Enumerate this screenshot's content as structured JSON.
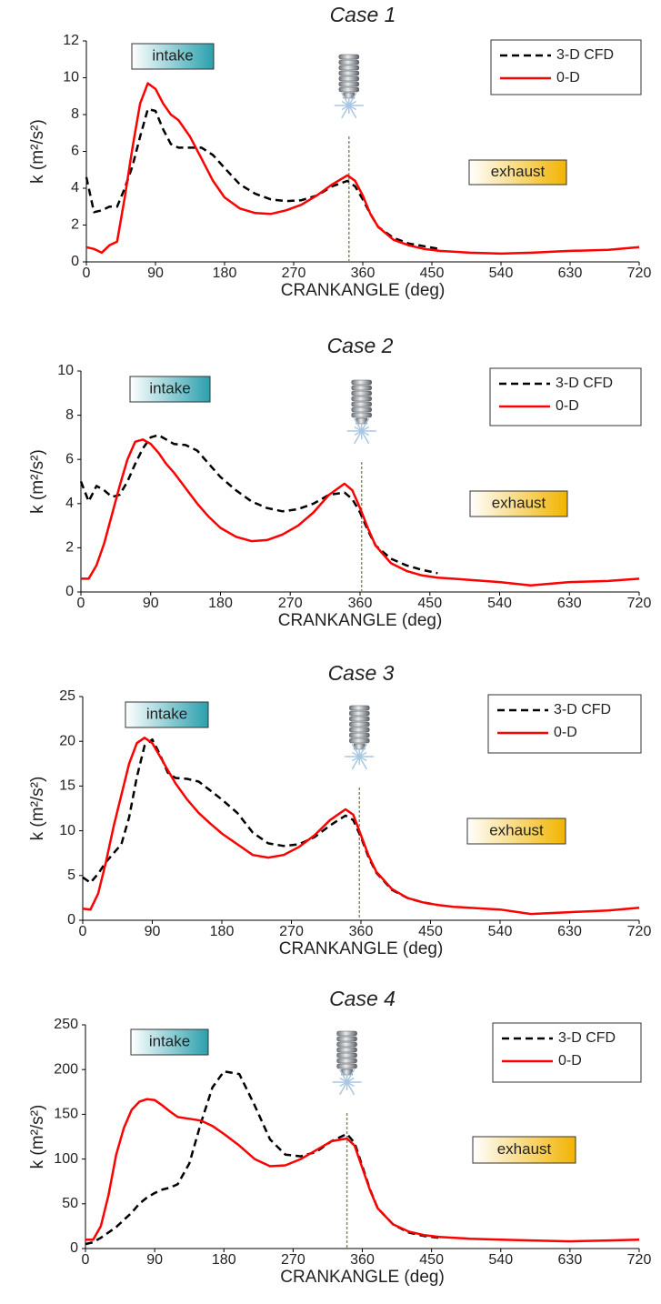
{
  "chart_data": [
    {
      "type": "line",
      "title": "Case 1",
      "xlabel": "CRANKANGLE (deg)",
      "ylabel": "k (m²/s²)",
      "annotations": [
        "intake",
        "exhaust"
      ],
      "vline_x": 342,
      "x": [
        0,
        10,
        20,
        30,
        40,
        50,
        60,
        70,
        80,
        90,
        100,
        110,
        120,
        135,
        150,
        165,
        180,
        200,
        220,
        240,
        260,
        280,
        300,
        320,
        340,
        350,
        360,
        370,
        380,
        400,
        420,
        440,
        460,
        480,
        500,
        540,
        580,
        630,
        680,
        720
      ],
      "series": [
        {
          "name": "3-D CFD",
          "color": "#000000",
          "style": "dashed",
          "values": [
            4.6,
            2.7,
            2.8,
            3.0,
            3.0,
            4.0,
            5.2,
            6.8,
            8.3,
            8.2,
            7.2,
            6.4,
            6.2,
            6.2,
            6.2,
            5.8,
            5.1,
            4.2,
            3.7,
            3.4,
            3.3,
            3.35,
            3.6,
            4.1,
            4.4,
            4.1,
            3.4,
            2.6,
            1.9,
            1.3,
            1.0,
            0.85,
            0.7,
            null,
            null,
            null,
            null,
            null,
            null,
            null
          ]
        },
        {
          "name": "0-D",
          "color": "#ff0000",
          "style": "solid",
          "values": [
            0.8,
            0.7,
            0.5,
            0.9,
            1.1,
            3.5,
            6.2,
            8.6,
            9.7,
            9.4,
            8.6,
            8.0,
            7.7,
            6.8,
            5.6,
            4.4,
            3.5,
            2.9,
            2.65,
            2.6,
            2.8,
            3.1,
            3.6,
            4.2,
            4.7,
            4.4,
            3.6,
            2.6,
            1.9,
            1.2,
            0.9,
            0.7,
            0.6,
            0.55,
            0.5,
            0.45,
            0.5,
            0.6,
            0.65,
            0.8
          ]
        }
      ],
      "xlim": [
        0,
        720
      ],
      "xticks": [
        0,
        90,
        180,
        270,
        360,
        450,
        540,
        630,
        720
      ],
      "ylim": [
        0,
        12
      ],
      "yticks": [
        0,
        2,
        4,
        6,
        8,
        10,
        12
      ],
      "legend": "upper right"
    },
    {
      "type": "line",
      "title": "Case 2",
      "xlabel": "CRANKANGLE (deg)",
      "ylabel": "k (m²/s²)",
      "annotations": [
        "intake",
        "exhaust"
      ],
      "vline_x": 362,
      "x": [
        0,
        10,
        20,
        30,
        40,
        50,
        60,
        70,
        80,
        90,
        100,
        110,
        120,
        135,
        150,
        165,
        180,
        200,
        220,
        240,
        260,
        280,
        300,
        320,
        340,
        350,
        360,
        370,
        380,
        400,
        420,
        440,
        460,
        480,
        500,
        540,
        580,
        630,
        680,
        720
      ],
      "series": [
        {
          "name": "3-D CFD",
          "color": "#000000",
          "style": "dashed",
          "values": [
            5.0,
            4.1,
            4.8,
            4.6,
            4.3,
            4.4,
            5.0,
            5.8,
            6.5,
            7.0,
            7.1,
            6.9,
            6.7,
            6.65,
            6.4,
            5.8,
            5.2,
            4.6,
            4.1,
            3.8,
            3.65,
            3.75,
            4.0,
            4.4,
            4.5,
            4.2,
            3.6,
            2.8,
            2.1,
            1.5,
            1.2,
            1.0,
            0.85,
            null,
            null,
            null,
            null,
            null,
            null,
            null
          ]
        },
        {
          "name": "0-D",
          "color": "#ff0000",
          "style": "solid",
          "values": [
            0.6,
            0.6,
            1.2,
            2.2,
            3.5,
            4.8,
            6.0,
            6.8,
            6.9,
            6.7,
            6.3,
            5.8,
            5.4,
            4.7,
            4.0,
            3.4,
            2.9,
            2.5,
            2.3,
            2.35,
            2.6,
            3.0,
            3.6,
            4.4,
            4.9,
            4.6,
            3.8,
            2.9,
            2.1,
            1.3,
            0.95,
            0.75,
            0.65,
            0.6,
            0.55,
            0.45,
            0.3,
            0.45,
            0.5,
            0.6
          ]
        }
      ],
      "xlim": [
        0,
        720
      ],
      "xticks": [
        0,
        90,
        180,
        270,
        360,
        450,
        540,
        630,
        720
      ],
      "ylim": [
        0,
        10
      ],
      "yticks": [
        0,
        2,
        4,
        6,
        8,
        10
      ],
      "legend": "upper right"
    },
    {
      "type": "line",
      "title": "Case 3",
      "xlabel": "CRANKANGLE (deg)",
      "ylabel": "k (m²/s²)",
      "annotations": [
        "intake",
        "exhaust"
      ],
      "vline_x": 358,
      "x": [
        0,
        10,
        20,
        30,
        40,
        50,
        60,
        70,
        80,
        90,
        100,
        110,
        120,
        135,
        150,
        165,
        180,
        200,
        220,
        240,
        260,
        280,
        300,
        320,
        340,
        350,
        360,
        370,
        380,
        400,
        420,
        440,
        460,
        480,
        500,
        540,
        580,
        630,
        680,
        720
      ],
      "series": [
        {
          "name": "3-D CFD",
          "color": "#000000",
          "style": "dashed",
          "values": [
            4.8,
            4.2,
            5.2,
            6.5,
            7.5,
            8.5,
            11.5,
            16,
            19.5,
            20.2,
            18.5,
            16.5,
            15.9,
            15.8,
            15.5,
            14.5,
            13.5,
            12,
            9.8,
            8.6,
            8.3,
            8.5,
            9.3,
            10.6,
            11.7,
            11.2,
            9.3,
            7.0,
            5.3,
            3.4,
            2.5,
            2.0,
            1.7,
            null,
            null,
            null,
            null,
            null,
            null,
            null
          ]
        },
        {
          "name": "0-D",
          "color": "#ff0000",
          "style": "solid",
          "values": [
            1.3,
            1.2,
            3.0,
            6.5,
            10.5,
            14,
            17.5,
            19.8,
            20.4,
            19.8,
            18.3,
            16.8,
            15.3,
            13.5,
            12,
            10.8,
            9.7,
            8.5,
            7.3,
            7.0,
            7.3,
            8.2,
            9.5,
            11.2,
            12.4,
            11.8,
            9.5,
            7.2,
            5.4,
            3.5,
            2.5,
            2.0,
            1.7,
            1.5,
            1.4,
            1.2,
            0.7,
            0.9,
            1.1,
            1.4
          ]
        }
      ],
      "xlim": [
        0,
        720
      ],
      "xticks": [
        0,
        90,
        180,
        270,
        360,
        450,
        540,
        630,
        720
      ],
      "ylim": [
        0,
        25
      ],
      "yticks": [
        0,
        5,
        10,
        15,
        20,
        25
      ],
      "legend": "upper right"
    },
    {
      "type": "line",
      "title": "Case 4",
      "xlabel": "CRANKANGLE (deg)",
      "ylabel": "k (m²/s²)",
      "annotations": [
        "intake",
        "exhaust"
      ],
      "vline_x": 340,
      "x": [
        0,
        10,
        20,
        30,
        40,
        50,
        60,
        70,
        80,
        90,
        100,
        110,
        120,
        135,
        150,
        165,
        180,
        200,
        220,
        240,
        260,
        280,
        300,
        320,
        340,
        350,
        360,
        370,
        380,
        400,
        420,
        440,
        460,
        480,
        500,
        540,
        580,
        630,
        680,
        720
      ],
      "series": [
        {
          "name": "3-D CFD",
          "color": "#000000",
          "style": "dashed",
          "values": [
            5,
            7,
            12,
            18,
            24,
            32,
            40,
            50,
            57,
            62,
            66,
            68,
            72,
            95,
            140,
            180,
            198,
            195,
            160,
            122,
            105,
            103,
            108,
            120,
            128,
            118,
            92,
            66,
            45,
            27,
            18,
            14,
            12,
            null,
            null,
            null,
            null,
            null,
            null,
            null
          ]
        },
        {
          "name": "0-D",
          "color": "#ff0000",
          "style": "solid",
          "values": [
            10,
            10,
            25,
            60,
            105,
            135,
            155,
            164,
            167,
            166,
            160,
            153,
            147,
            145,
            143,
            137,
            128,
            115,
            100,
            92,
            93,
            100,
            110,
            120,
            123,
            115,
            90,
            65,
            45,
            27,
            19,
            15,
            13,
            12,
            11,
            10,
            9,
            8,
            9,
            10
          ]
        }
      ],
      "xlim": [
        0,
        720
      ],
      "xticks": [
        0,
        90,
        180,
        270,
        360,
        450,
        540,
        630,
        720
      ],
      "ylim": [
        0,
        250
      ],
      "yticks": [
        0,
        50,
        100,
        150,
        200,
        250
      ],
      "legend": "upper right"
    }
  ]
}
